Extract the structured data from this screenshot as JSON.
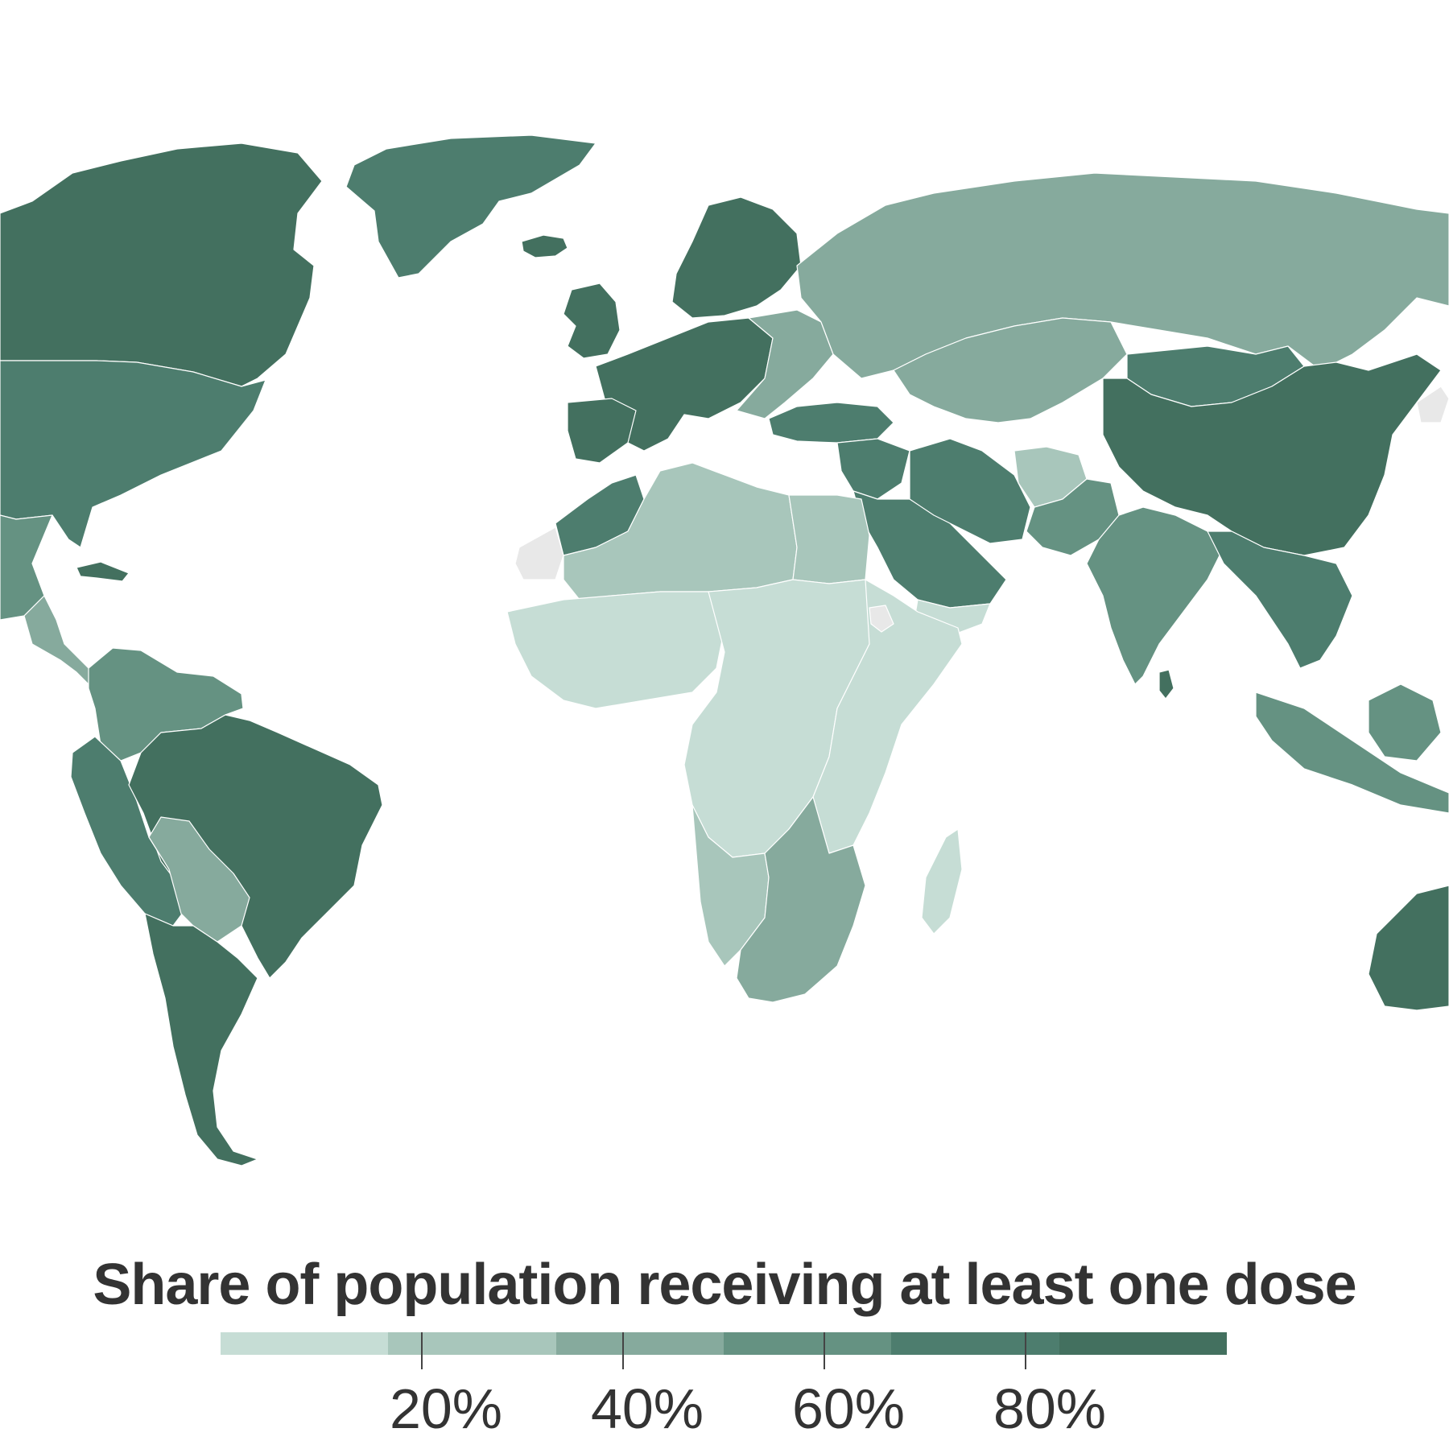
{
  "legend": {
    "title": "Share of population receiving at least one dose",
    "ticks": [
      "20%",
      "40%",
      "60%",
      "80%"
    ]
  },
  "colors": {
    "background": "#ffffff",
    "no_data": "#e8e8e8",
    "scale": [
      "#c6ddd5",
      "#a8c6bb",
      "#86aa9d",
      "#659282",
      "#4d7d6e",
      "#43705f"
    ]
  },
  "map_data": {
    "type": "choropleth",
    "metric": "share_of_population_with_at_least_one_dose",
    "unit": "%",
    "scale_domain": [
      0,
      100
    ],
    "regions": [
      {
        "id": "greenland",
        "bin": 4
      },
      {
        "id": "iceland",
        "bin": 5
      },
      {
        "id": "canada",
        "bin": 5
      },
      {
        "id": "usa",
        "bin": 4
      },
      {
        "id": "mexico",
        "bin": 3
      },
      {
        "id": "central-america",
        "bin": 2
      },
      {
        "id": "cuba",
        "bin": 5
      },
      {
        "id": "colombia-venezuela",
        "bin": 3
      },
      {
        "id": "ecuador-peru",
        "bin": 4
      },
      {
        "id": "brazil",
        "bin": 5
      },
      {
        "id": "bolivia-paraguay",
        "bin": 2
      },
      {
        "id": "argentina-chile",
        "bin": 5
      },
      {
        "id": "scandinavia",
        "bin": 5
      },
      {
        "id": "uk-ireland",
        "bin": 5
      },
      {
        "id": "western-europe",
        "bin": 5
      },
      {
        "id": "iberia",
        "bin": 5
      },
      {
        "id": "eastern-europe",
        "bin": 2
      },
      {
        "id": "russia",
        "bin": 2
      },
      {
        "id": "central-asia",
        "bin": 2
      },
      {
        "id": "turkey",
        "bin": 4
      },
      {
        "id": "middle-east",
        "bin": 4
      },
      {
        "id": "arabian-peninsula",
        "bin": 4
      },
      {
        "id": "yemen",
        "bin": 0
      },
      {
        "id": "iran",
        "bin": 4
      },
      {
        "id": "afghanistan",
        "bin": 1
      },
      {
        "id": "pakistan",
        "bin": 3
      },
      {
        "id": "india",
        "bin": 3
      },
      {
        "id": "sri-lanka",
        "bin": 5
      },
      {
        "id": "mongolia",
        "bin": 4
      },
      {
        "id": "china",
        "bin": 5
      },
      {
        "id": "southeast-asia",
        "bin": 4
      },
      {
        "id": "indonesia",
        "bin": 3
      },
      {
        "id": "borneo",
        "bin": 3
      },
      {
        "id": "australia",
        "bin": 5
      },
      {
        "id": "morocco",
        "bin": 4
      },
      {
        "id": "north-africa",
        "bin": 1
      },
      {
        "id": "egypt",
        "bin": 1
      },
      {
        "id": "west-africa",
        "bin": 0
      },
      {
        "id": "central-africa",
        "bin": 0
      },
      {
        "id": "east-africa",
        "bin": 0
      },
      {
        "id": "angola-namibia",
        "bin": 1
      },
      {
        "id": "southern-africa",
        "bin": 2
      },
      {
        "id": "madagascar",
        "bin": 0
      },
      {
        "id": "western-sahara",
        "bin": -1
      },
      {
        "id": "eritrea",
        "bin": -1
      },
      {
        "id": "north-korea",
        "bin": -1
      }
    ]
  }
}
